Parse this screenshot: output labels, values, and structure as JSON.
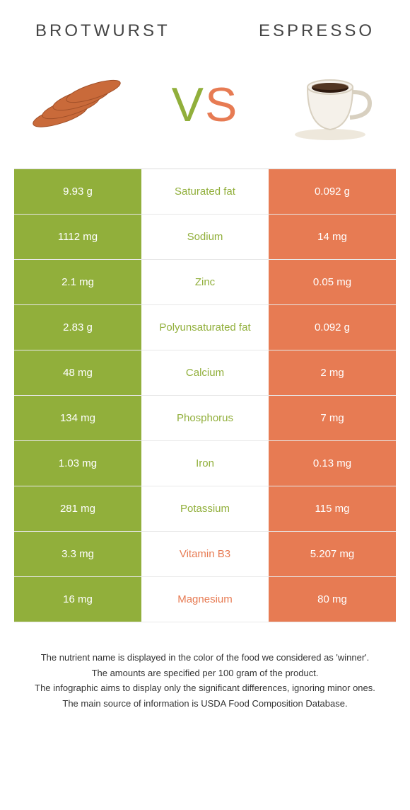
{
  "header": {
    "left_title": "Brotwurst",
    "right_title": "Espresso",
    "vs_v": "V",
    "vs_s": "S"
  },
  "colors": {
    "left": "#91af3b",
    "right": "#e77b53",
    "row_border": "#e8e8e8",
    "text_dark": "#333333"
  },
  "table": {
    "rows": [
      {
        "left": "9.93 g",
        "label": "Saturated fat",
        "right": "0.092 g",
        "winner": "left"
      },
      {
        "left": "1112 mg",
        "label": "Sodium",
        "right": "14 mg",
        "winner": "left"
      },
      {
        "left": "2.1 mg",
        "label": "Zinc",
        "right": "0.05 mg",
        "winner": "left"
      },
      {
        "left": "2.83 g",
        "label": "Polyunsaturated fat",
        "right": "0.092 g",
        "winner": "left"
      },
      {
        "left": "48 mg",
        "label": "Calcium",
        "right": "2 mg",
        "winner": "left"
      },
      {
        "left": "134 mg",
        "label": "Phosphorus",
        "right": "7 mg",
        "winner": "left"
      },
      {
        "left": "1.03 mg",
        "label": "Iron",
        "right": "0.13 mg",
        "winner": "left"
      },
      {
        "left": "281 mg",
        "label": "Potassium",
        "right": "115 mg",
        "winner": "left"
      },
      {
        "left": "3.3 mg",
        "label": "Vitamin B3",
        "right": "5.207 mg",
        "winner": "right"
      },
      {
        "left": "16 mg",
        "label": "Magnesium",
        "right": "80 mg",
        "winner": "right"
      }
    ]
  },
  "footer": {
    "line1": "The nutrient name is displayed in the color of the food we considered as 'winner'.",
    "line2": "The amounts are specified per 100 gram of the product.",
    "line3": "The infographic aims to display only the significant differences, ignoring minor ones.",
    "line4": "The main source of information is USDA Food Composition Database."
  }
}
